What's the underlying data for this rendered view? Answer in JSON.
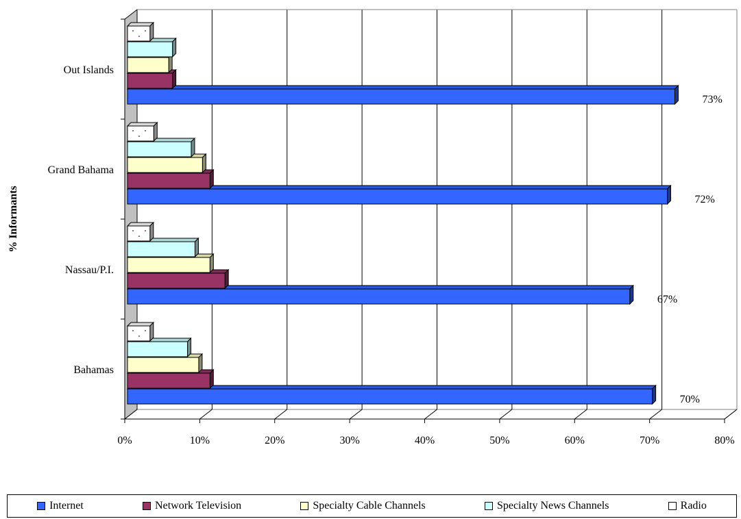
{
  "chart_data": {
    "type": "bar",
    "orientation": "horizontal",
    "style": "3d-clustered",
    "ylabel": "% Informants",
    "xlabel": "",
    "xlim": [
      0,
      80
    ],
    "x_ticks": [
      "0%",
      "10%",
      "20%",
      "30%",
      "40%",
      "50%",
      "60%",
      "70%",
      "80%"
    ],
    "grid": true,
    "legend_position": "bottom",
    "categories": [
      "Bahamas",
      "Nassau/P.I.",
      "Grand Bahama",
      "Out Islands"
    ],
    "series": [
      {
        "name": "Internet",
        "color": "#3366ff",
        "values": [
          70,
          67,
          72,
          73
        ]
      },
      {
        "name": "Network Television",
        "color": "#993366",
        "values": [
          11,
          13,
          11,
          6
        ]
      },
      {
        "name": "Specialty Cable Channels",
        "color": "#ffffcc",
        "values": [
          9.5,
          11,
          10,
          5.5
        ]
      },
      {
        "name": "Specialty News Channels",
        "color": "#ccffff",
        "values": [
          8,
          9,
          8.5,
          6
        ]
      },
      {
        "name": "Radio",
        "color": "#ffffff",
        "values": [
          3,
          3,
          3.5,
          3
        ]
      }
    ],
    "data_labels": [
      {
        "category": "Bahamas",
        "series": "Internet",
        "text": "70%"
      },
      {
        "category": "Nassau/P.I.",
        "series": "Internet",
        "text": "67%"
      },
      {
        "category": "Grand Bahama",
        "series": "Internet",
        "text": "72%"
      },
      {
        "category": "Out Islands",
        "series": "Internet",
        "text": "73%"
      }
    ]
  }
}
